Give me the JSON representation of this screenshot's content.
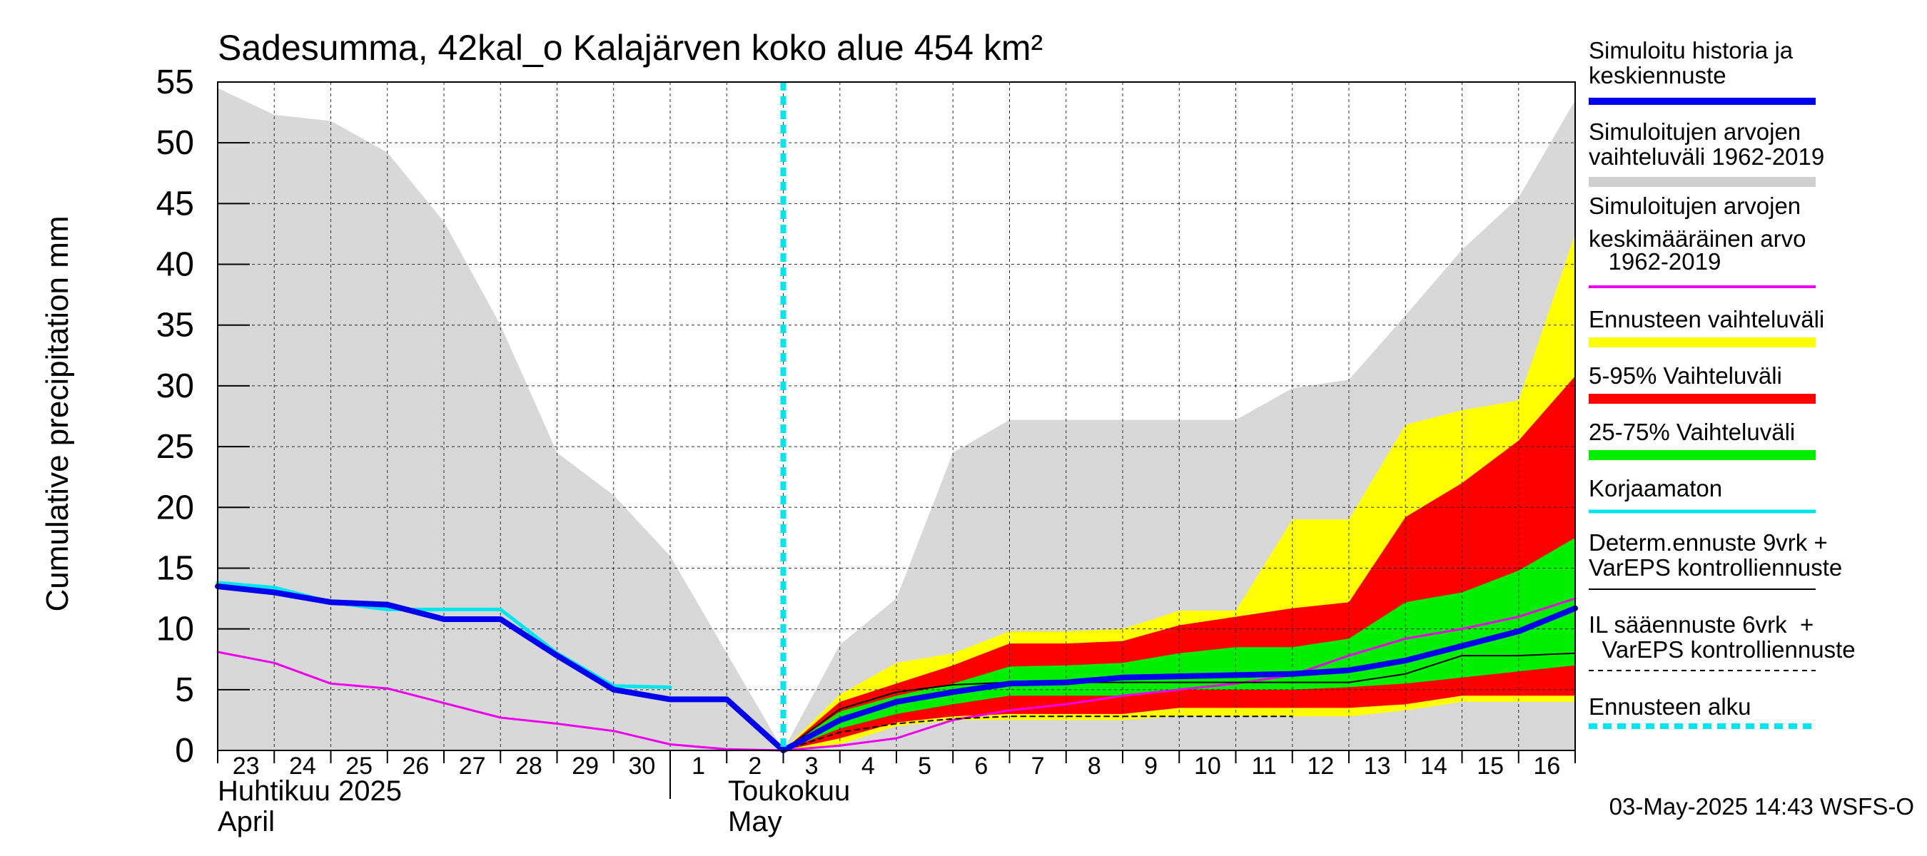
{
  "chart_data": {
    "type": "area",
    "title": "Sadesumma, 42kal_o Kalajärven koko alue 454 km²",
    "ylabel": "Cumulative precipitation   mm",
    "ylim": [
      0,
      55
    ],
    "yticks": [
      "0",
      "5",
      "10",
      "15",
      "20",
      "25",
      "30",
      "35",
      "40",
      "45",
      "50",
      "55"
    ],
    "x": [
      "2025-04-23",
      "2025-04-24",
      "2025-04-25",
      "2025-04-26",
      "2025-04-27",
      "2025-04-28",
      "2025-04-29",
      "2025-04-30",
      "2025-05-01",
      "2025-05-02",
      "2025-05-03",
      "2025-05-04",
      "2025-05-05",
      "2025-05-06",
      "2025-05-07",
      "2025-05-08",
      "2025-05-09",
      "2025-05-10",
      "2025-05-11",
      "2025-05-12",
      "2025-05-13",
      "2025-05-14",
      "2025-05-15",
      "2025-05-16",
      "2025-05-17"
    ],
    "xtick_labels": [
      "23",
      "24",
      "25",
      "26",
      "27",
      "28",
      "29",
      "30",
      "1",
      "2",
      "3",
      "4",
      "5",
      "6",
      "7",
      "8",
      "9",
      "10",
      "11",
      "12",
      "13",
      "14",
      "15",
      "16"
    ],
    "month_labels": {
      "april_fi": "Huhtikuu  2025",
      "april_en": "April",
      "may_fi": "Toukokuu",
      "may_en": "May"
    },
    "forecast_start": "2025-05-03",
    "grid": true,
    "legend_position": "right",
    "series": [
      {
        "name": "Simuloitujen arvojen vaihteluväli 1962-2019",
        "kind": "band",
        "color": "#d8d8d8",
        "x": [
          "2025-04-23",
          "2025-04-24",
          "2025-04-25",
          "2025-04-26",
          "2025-04-27",
          "2025-04-28",
          "2025-04-29",
          "2025-04-30",
          "2025-05-01",
          "2025-05-02",
          "2025-05-03",
          "2025-05-04",
          "2025-05-05",
          "2025-05-06",
          "2025-05-07",
          "2025-05-08",
          "2025-05-09",
          "2025-05-10",
          "2025-05-11",
          "2025-05-12",
          "2025-05-13",
          "2025-05-14",
          "2025-05-15",
          "2025-05-16",
          "2025-05-17"
        ],
        "upper": [
          54.5,
          52.3,
          51.8,
          49.2,
          43.5,
          35.0,
          24.5,
          21.0,
          16.0,
          8.0,
          0.0,
          8.7,
          12.5,
          24.5,
          27.2,
          27.2,
          27.2,
          27.2,
          27.2,
          29.8,
          30.5,
          35.8,
          41.2,
          45.5,
          53.5
        ],
        "lower": [
          0,
          0,
          0,
          0,
          0,
          0,
          0,
          0,
          0,
          0,
          0,
          0,
          0,
          0,
          0,
          0,
          0,
          0,
          0,
          0,
          0,
          0,
          0,
          0,
          0
        ]
      },
      {
        "name": "Ennusteen vaihteluväli",
        "kind": "band",
        "color": "#ffff00",
        "x": [
          "2025-05-03",
          "2025-05-04",
          "2025-05-05",
          "2025-05-06",
          "2025-05-07",
          "2025-05-08",
          "2025-05-09",
          "2025-05-10",
          "2025-05-11",
          "2025-05-12",
          "2025-05-13",
          "2025-05-14",
          "2025-05-15",
          "2025-05-16",
          "2025-05-17"
        ],
        "upper": [
          0,
          4.6,
          7.2,
          8.0,
          9.8,
          9.8,
          10.0,
          11.5,
          11.5,
          19.0,
          19.0,
          26.8,
          28.0,
          28.8,
          42.5
        ],
        "lower": [
          0,
          0.5,
          2.0,
          2.5,
          2.5,
          2.5,
          2.5,
          2.8,
          2.8,
          2.8,
          2.8,
          3.3,
          4.0,
          4.0,
          4.0
        ]
      },
      {
        "name": "5-95% Vaihteluväli",
        "kind": "band",
        "color": "#ff0000",
        "x": [
          "2025-05-03",
          "2025-05-04",
          "2025-05-05",
          "2025-05-06",
          "2025-05-07",
          "2025-05-08",
          "2025-05-09",
          "2025-05-10",
          "2025-05-11",
          "2025-05-12",
          "2025-05-13",
          "2025-05-14",
          "2025-05-15",
          "2025-05-16",
          "2025-05-17"
        ],
        "upper": [
          0,
          4.0,
          5.5,
          7.0,
          8.8,
          8.8,
          9.0,
          10.3,
          11.0,
          11.7,
          12.2,
          19.2,
          22.0,
          25.5,
          30.8
        ],
        "lower": [
          0,
          1.0,
          2.3,
          2.8,
          3.0,
          3.0,
          3.0,
          3.5,
          3.5,
          3.5,
          3.5,
          3.8,
          4.5,
          4.5,
          4.5
        ]
      },
      {
        "name": "25-75% Vaihteluväli",
        "kind": "band",
        "color": "#00ee00",
        "x": [
          "2025-05-03",
          "2025-05-04",
          "2025-05-05",
          "2025-05-06",
          "2025-05-07",
          "2025-05-08",
          "2025-05-09",
          "2025-05-10",
          "2025-05-11",
          "2025-05-12",
          "2025-05-13",
          "2025-05-14",
          "2025-05-15",
          "2025-05-16",
          "2025-05-17"
        ],
        "upper": [
          0,
          3.2,
          4.5,
          5.5,
          6.9,
          7.0,
          7.2,
          8.0,
          8.5,
          8.5,
          9.2,
          12.2,
          13.0,
          14.8,
          17.5
        ],
        "lower": [
          0,
          1.8,
          3.0,
          3.8,
          4.5,
          4.5,
          4.5,
          5.0,
          5.0,
          5.0,
          5.2,
          5.5,
          6.0,
          6.5,
          7.0
        ]
      },
      {
        "name": "Simuloitujen arvojen keskimääräinen arvo 1962-2019",
        "kind": "line",
        "color": "#ee00ee",
        "width": 3,
        "x": [
          "2025-04-23",
          "2025-04-24",
          "2025-04-25",
          "2025-04-26",
          "2025-04-27",
          "2025-04-28",
          "2025-04-29",
          "2025-04-30",
          "2025-05-01",
          "2025-05-02",
          "2025-05-03",
          "2025-05-04",
          "2025-05-05",
          "2025-05-06",
          "2025-05-07",
          "2025-05-08",
          "2025-05-09",
          "2025-05-10",
          "2025-05-11",
          "2025-05-12",
          "2025-05-13",
          "2025-05-14",
          "2025-05-15",
          "2025-05-16",
          "2025-05-17"
        ],
        "values": [
          8.1,
          7.2,
          5.5,
          5.1,
          3.9,
          2.7,
          2.2,
          1.6,
          0.5,
          0.1,
          0.0,
          0.4,
          1.0,
          2.5,
          3.3,
          3.8,
          4.5,
          5.0,
          5.5,
          6.2,
          7.8,
          9.2,
          10.0,
          11.0,
          12.5
        ]
      },
      {
        "name": "IL sääennuste 6vrk  +   VarEPS kontrolliennuste",
        "kind": "line",
        "color": "#000000",
        "width": 2,
        "dash": "7,6",
        "x": [
          "2025-05-03",
          "2025-05-04",
          "2025-05-05",
          "2025-05-06",
          "2025-05-07",
          "2025-05-08",
          "2025-05-09",
          "2025-05-10",
          "2025-05-11",
          "2025-05-12"
        ],
        "values": [
          0,
          1.5,
          2.2,
          2.6,
          2.8,
          2.8,
          2.8,
          2.8,
          2.8,
          2.8
        ]
      },
      {
        "name": "Determ.ennuste 9vrk +  VarEPS kontrolliennuste",
        "kind": "line",
        "color": "#000000",
        "width": 2,
        "x": [
          "2025-05-03",
          "2025-05-04",
          "2025-05-05",
          "2025-05-06",
          "2025-05-07",
          "2025-05-08",
          "2025-05-09",
          "2025-05-10",
          "2025-05-11",
          "2025-05-12",
          "2025-05-13",
          "2025-05-14",
          "2025-05-15",
          "2025-05-16",
          "2025-05-17"
        ],
        "values": [
          0,
          3.4,
          4.8,
          5.4,
          5.6,
          5.6,
          5.6,
          5.6,
          5.6,
          5.6,
          5.6,
          6.3,
          7.8,
          7.8,
          8.0
        ]
      },
      {
        "name": "Korjaamaton",
        "kind": "line",
        "color": "#00e5ee",
        "width": 5,
        "x": [
          "2025-04-23",
          "2025-04-24",
          "2025-04-25",
          "2025-04-26",
          "2025-04-27",
          "2025-04-28",
          "2025-04-29",
          "2025-04-30",
          "2025-05-01"
        ],
        "values": [
          13.8,
          13.4,
          12.2,
          11.6,
          11.6,
          11.6,
          8.0,
          5.3,
          5.2
        ]
      },
      {
        "name": "Simuloitu historia ja keskiennuste",
        "kind": "line",
        "color": "#0000ee",
        "width": 8,
        "x": [
          "2025-04-23",
          "2025-04-24",
          "2025-04-25",
          "2025-04-26",
          "2025-04-27",
          "2025-04-28",
          "2025-04-29",
          "2025-04-30",
          "2025-05-01",
          "2025-05-02",
          "2025-05-03",
          "2025-05-04",
          "2025-05-05",
          "2025-05-06",
          "2025-05-07",
          "2025-05-08",
          "2025-05-09",
          "2025-05-10",
          "2025-05-11",
          "2025-05-12",
          "2025-05-13",
          "2025-05-14",
          "2025-05-15",
          "2025-05-16",
          "2025-05-17"
        ],
        "values": [
          13.5,
          13.0,
          12.2,
          12.0,
          10.8,
          10.8,
          7.8,
          5.0,
          4.2,
          4.2,
          0.0,
          2.5,
          4.0,
          4.8,
          5.5,
          5.6,
          6.0,
          6.1,
          6.2,
          6.3,
          6.6,
          7.4,
          8.6,
          9.8,
          11.7
        ]
      }
    ],
    "legend": [
      {
        "lines": [
          "Simuloitu historia ja",
          "keskiennuste"
        ],
        "color": "#0000ee",
        "style": "thick"
      },
      {
        "lines": [
          "Simuloitujen arvojen",
          "vaihteluväli 1962-2019"
        ],
        "color": "#d0d0d0",
        "style": "band"
      },
      {
        "lines": [
          "Simuloitujen arvojen",
          "keskimääräinen arvo",
          "   1962-2019"
        ],
        "color": "#ee00ee",
        "style": "thin"
      },
      {
        "lines": [
          "Ennusteen vaihteluväli"
        ],
        "color": "#ffff00",
        "style": "band"
      },
      {
        "lines": [
          "5-95% Vaihteluväli"
        ],
        "color": "#ff0000",
        "style": "band"
      },
      {
        "lines": [
          "25-75% Vaihteluväli"
        ],
        "color": "#00ee00",
        "style": "band"
      },
      {
        "lines": [
          "Korjaamaton"
        ],
        "color": "#00e5ee",
        "style": "medium"
      },
      {
        "lines": [
          "Determ.ennuste 9vrk +",
          "VarEPS kontrolliennuste"
        ],
        "color": "#000000",
        "style": "hair"
      },
      {
        "lines": [
          "IL sääennuste 6vrk  +",
          "  VarEPS kontrolliennuste"
        ],
        "color": "#000000",
        "style": "dashed"
      },
      {
        "lines": [
          "Ennusteen alku"
        ],
        "color": "#00e5ee",
        "style": "dotted"
      }
    ],
    "timestamp": "03-May-2025 14:43 WSFS-O"
  }
}
